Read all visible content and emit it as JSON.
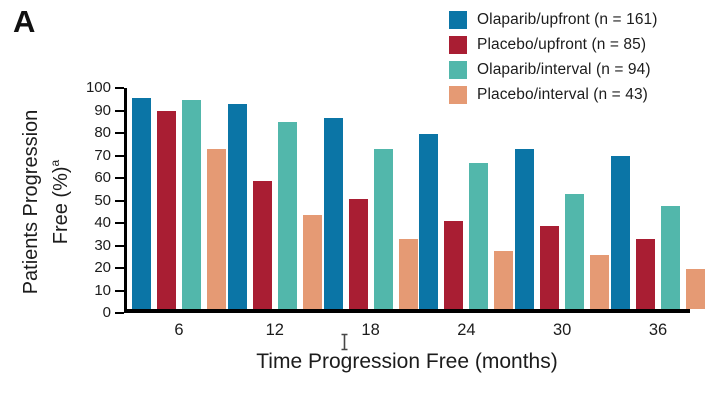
{
  "figure": {
    "panel_label": "A",
    "background": "#ffffff",
    "text_color": "#1c1c1c",
    "axis_color": "#000000"
  },
  "chart_data": {
    "type": "bar",
    "title": "",
    "xlabel": "Time Progression Free (months)",
    "ylabel_line1": "Patients Progression",
    "ylabel_line2": "Free (%)",
    "ylabel_superscript": "a",
    "categories": [
      "6",
      "12",
      "18",
      "24",
      "30",
      "36"
    ],
    "y_ticks": [
      0,
      10,
      20,
      30,
      40,
      50,
      60,
      70,
      80,
      90,
      100
    ],
    "ylim": [
      0,
      100
    ],
    "grid": false,
    "legend_position": "top-right",
    "series": [
      {
        "name": "Olaparib/upfront (n = 161)",
        "color": "#0b75a6",
        "values": [
          94,
          91,
          85,
          78,
          71,
          68
        ]
      },
      {
        "name": "Placebo/upfront (n = 85)",
        "color": "#a91e33",
        "values": [
          88,
          57,
          49,
          39,
          37,
          31
        ]
      },
      {
        "name": "Olaparib/interval (n = 94)",
        "color": "#52b7ab",
        "values": [
          93,
          83,
          71,
          65,
          51,
          46
        ]
      },
      {
        "name": "Placebo/interval (n = 43)",
        "color": "#e59a74",
        "values": [
          71,
          42,
          31,
          26,
          24,
          18
        ]
      }
    ]
  }
}
